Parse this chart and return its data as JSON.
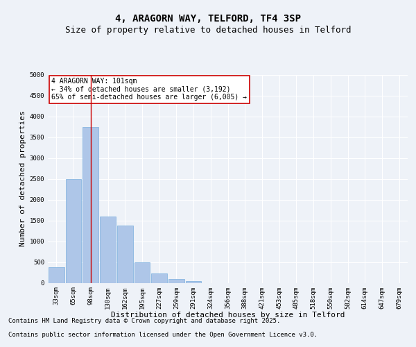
{
  "title_line1": "4, ARAGORN WAY, TELFORD, TF4 3SP",
  "title_line2": "Size of property relative to detached houses in Telford",
  "xlabel": "Distribution of detached houses by size in Telford",
  "ylabel": "Number of detached properties",
  "categories": [
    "33sqm",
    "65sqm",
    "98sqm",
    "130sqm",
    "162sqm",
    "195sqm",
    "227sqm",
    "259sqm",
    "291sqm",
    "324sqm",
    "356sqm",
    "388sqm",
    "421sqm",
    "453sqm",
    "485sqm",
    "518sqm",
    "550sqm",
    "582sqm",
    "614sqm",
    "647sqm",
    "679sqm"
  ],
  "values": [
    380,
    2500,
    3750,
    1600,
    1380,
    500,
    220,
    100,
    45,
    0,
    0,
    0,
    0,
    0,
    0,
    0,
    0,
    0,
    0,
    0,
    0
  ],
  "bar_color": "#aec6e8",
  "bar_edge_color": "#7aafde",
  "vline_x": 2,
  "vline_color": "#cc0000",
  "annotation_text": "4 ARAGORN WAY: 101sqm\n← 34% of detached houses are smaller (3,192)\n65% of semi-detached houses are larger (6,005) →",
  "annotation_box_color": "#ffffff",
  "annotation_box_edge": "#cc0000",
  "ylim": [
    0,
    5000
  ],
  "yticks": [
    0,
    500,
    1000,
    1500,
    2000,
    2500,
    3000,
    3500,
    4000,
    4500,
    5000
  ],
  "background_color": "#eef2f8",
  "plot_bg_color": "#eef2f8",
  "grid_color": "#ffffff",
  "footer_line1": "Contains HM Land Registry data © Crown copyright and database right 2025.",
  "footer_line2": "Contains public sector information licensed under the Open Government Licence v3.0.",
  "title_fontsize": 10,
  "subtitle_fontsize": 9,
  "tick_fontsize": 6.5,
  "label_fontsize": 8,
  "footer_fontsize": 6.5,
  "ann_fontsize": 7
}
